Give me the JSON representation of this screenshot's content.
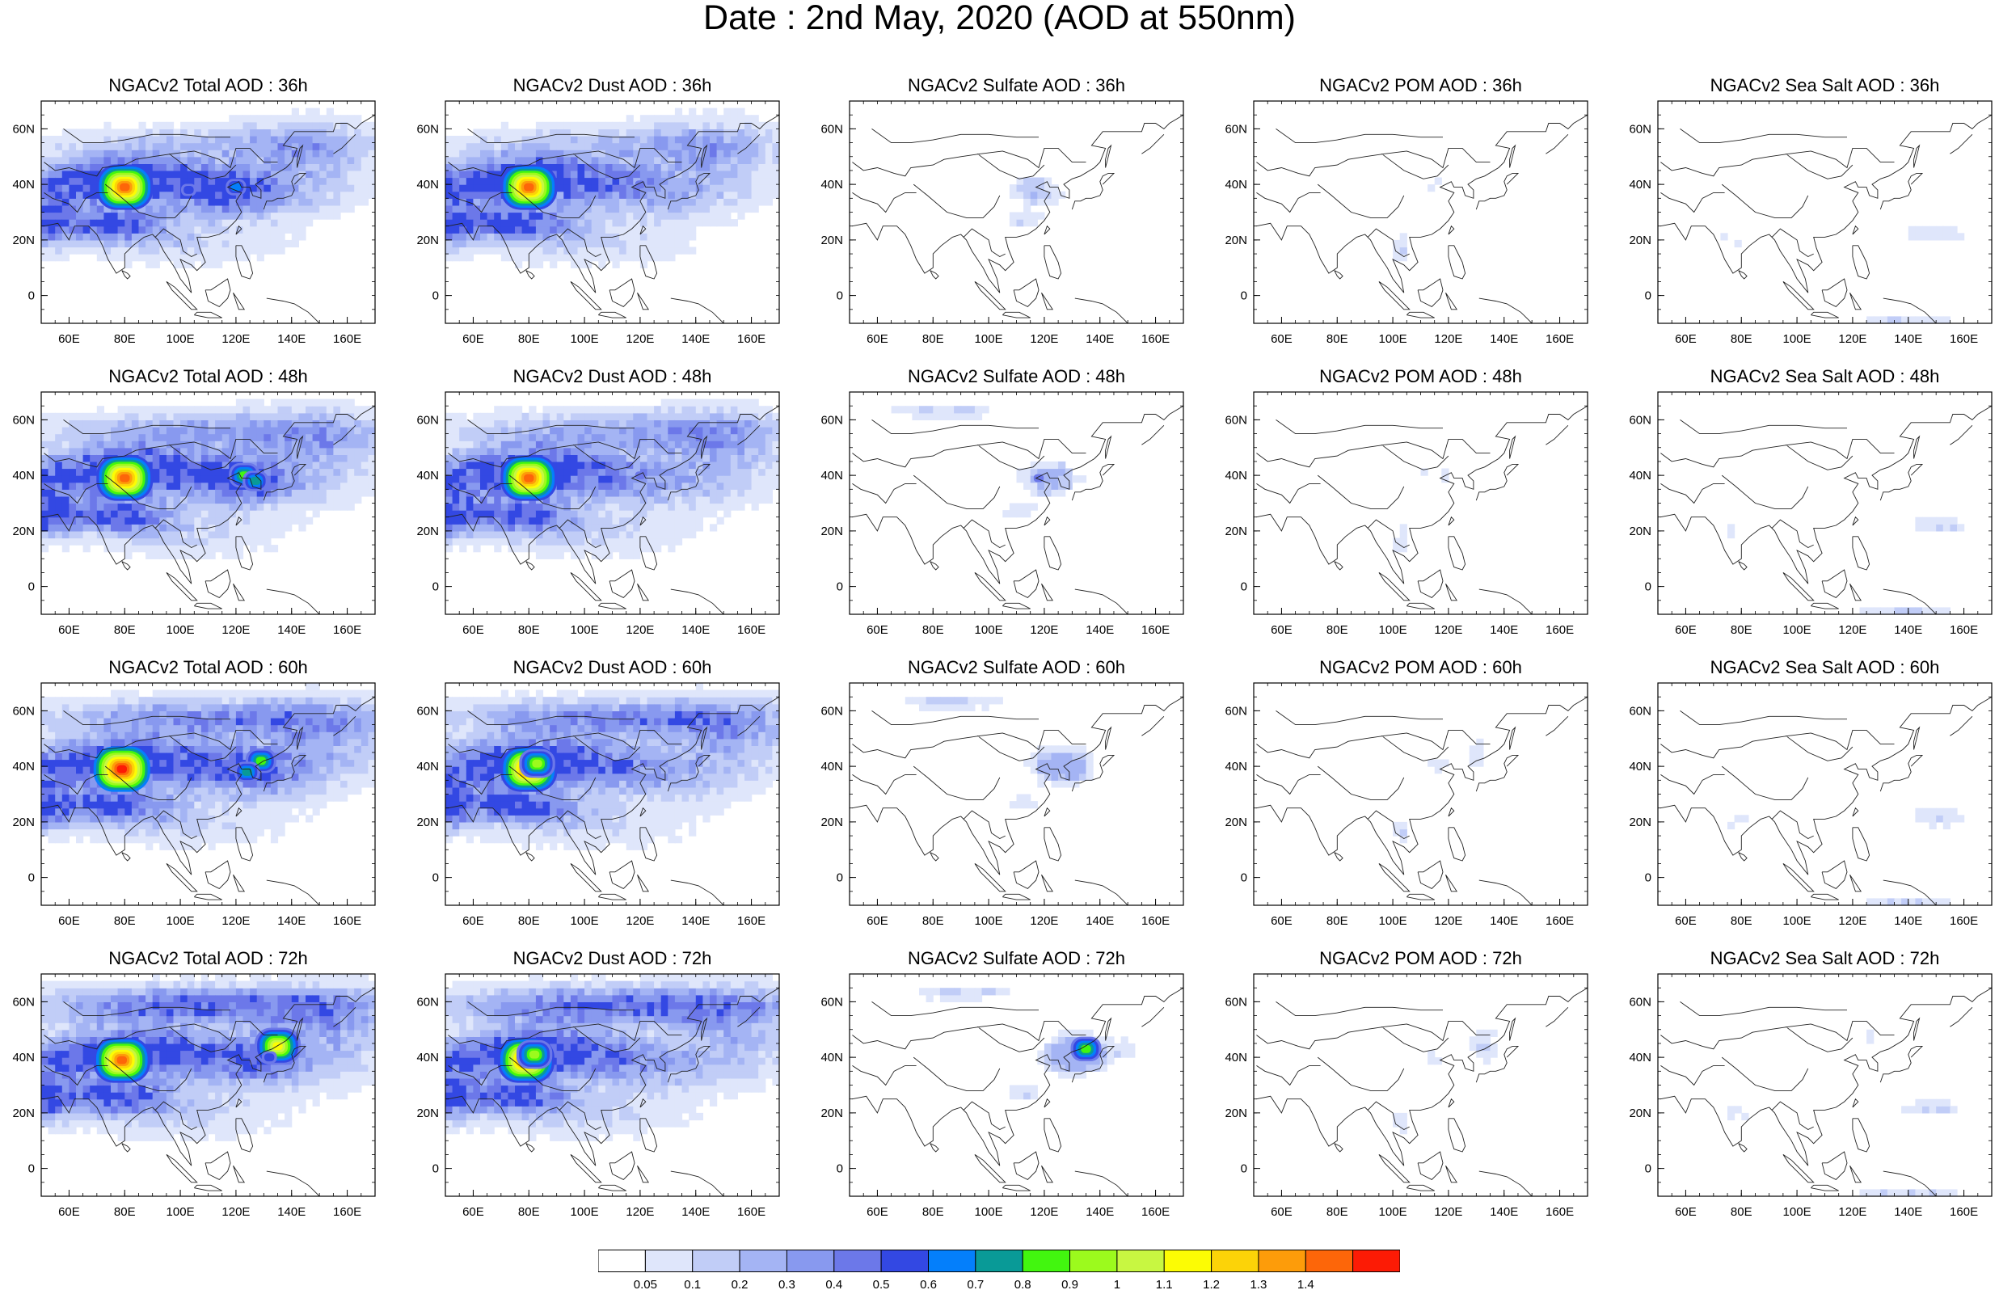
{
  "title": "Date : 2nd May, 2020 (AOD at 550nm)",
  "map": {
    "lon_range": [
      50,
      170
    ],
    "lat_range": [
      -10,
      70
    ],
    "x_ticks": [
      "60E",
      "80E",
      "100E",
      "120E",
      "140E",
      "160E"
    ],
    "x_tick_values": [
      60,
      80,
      100,
      120,
      140,
      160
    ],
    "y_ticks": [
      "60N",
      "40N",
      "20N",
      "0"
    ],
    "y_tick_values": [
      60,
      40,
      20,
      0
    ]
  },
  "panels": [
    {
      "id": "total-36",
      "title": "NGACv2 Total AOD : 36h",
      "species": "total",
      "forecast_hour": 36
    },
    {
      "id": "dust-36",
      "title": "NGACv2 Dust AOD : 36h",
      "species": "dust",
      "forecast_hour": 36
    },
    {
      "id": "sulfate-36",
      "title": "NGACv2 Sulfate AOD : 36h",
      "species": "sulfate",
      "forecast_hour": 36
    },
    {
      "id": "pom-36",
      "title": "NGACv2 POM AOD : 36h",
      "species": "pom",
      "forecast_hour": 36
    },
    {
      "id": "seasalt-36",
      "title": "NGACv2 Sea Salt AOD : 36h",
      "species": "seasalt",
      "forecast_hour": 36
    },
    {
      "id": "total-48",
      "title": "NGACv2 Total AOD : 48h",
      "species": "total",
      "forecast_hour": 48
    },
    {
      "id": "dust-48",
      "title": "NGACv2 Dust AOD : 48h",
      "species": "dust",
      "forecast_hour": 48
    },
    {
      "id": "sulfate-48",
      "title": "NGACv2 Sulfate AOD : 48h",
      "species": "sulfate",
      "forecast_hour": 48
    },
    {
      "id": "pom-48",
      "title": "NGACv2 POM AOD : 48h",
      "species": "pom",
      "forecast_hour": 48
    },
    {
      "id": "seasalt-48",
      "title": "NGACv2 Sea Salt AOD : 48h",
      "species": "seasalt",
      "forecast_hour": 48
    },
    {
      "id": "total-60",
      "title": "NGACv2 Total AOD : 60h",
      "species": "total",
      "forecast_hour": 60
    },
    {
      "id": "dust-60",
      "title": "NGACv2 Dust AOD : 60h",
      "species": "dust",
      "forecast_hour": 60
    },
    {
      "id": "sulfate-60",
      "title": "NGACv2 Sulfate AOD : 60h",
      "species": "sulfate",
      "forecast_hour": 60
    },
    {
      "id": "pom-60",
      "title": "NGACv2 POM AOD : 60h",
      "species": "pom",
      "forecast_hour": 60
    },
    {
      "id": "seasalt-60",
      "title": "NGACv2 Sea Salt AOD : 60h",
      "species": "seasalt",
      "forecast_hour": 60
    },
    {
      "id": "total-72",
      "title": "NGACv2 Total AOD : 72h",
      "species": "total",
      "forecast_hour": 72
    },
    {
      "id": "dust-72",
      "title": "NGACv2 Dust AOD : 72h",
      "species": "dust",
      "forecast_hour": 72
    },
    {
      "id": "sulfate-72",
      "title": "NGACv2 Sulfate AOD : 72h",
      "species": "sulfate",
      "forecast_hour": 72
    },
    {
      "id": "pom-72",
      "title": "NGACv2 POM AOD : 72h",
      "species": "pom",
      "forecast_hour": 72
    },
    {
      "id": "seasalt-72",
      "title": "NGACv2 Sea Salt  AOD : 72h",
      "species": "seasalt",
      "forecast_hour": 72
    }
  ],
  "colorbar": {
    "labels": [
      "0.05",
      "0.1",
      "0.2",
      "0.3",
      "0.4",
      "0.5",
      "0.6",
      "0.7",
      "0.8",
      "0.9",
      "1",
      "1.1",
      "1.2",
      "1.3",
      "1.4"
    ],
    "colors": [
      "#ffffff",
      "#dfe6fb",
      "#c1cdf7",
      "#a4b4f4",
      "#8899ef",
      "#6c78e9",
      "#3348e3",
      "#047ffb",
      "#099a97",
      "#42f60f",
      "#9cfa1d",
      "#c8f741",
      "#fcfc04",
      "#fcd308",
      "#fd9c0a",
      "#fd6609",
      "#fc1b05"
    ]
  },
  "plumes": [
    {
      "panel": "total-36",
      "lon": 80,
      "lat": 39,
      "level": 15
    },
    {
      "panel": "total-36",
      "lon": 120,
      "lat": 39,
      "level": 7
    },
    {
      "panel": "total-36",
      "lon": 103,
      "lat": 38,
      "level": 6
    },
    {
      "panel": "dust-36",
      "lon": 80,
      "lat": 39,
      "level": 15
    },
    {
      "panel": "dust-36",
      "lon": 120,
      "lat": 40,
      "level": 5
    },
    {
      "panel": "total-48",
      "lon": 80,
      "lat": 39,
      "level": 15
    },
    {
      "panel": "total-48",
      "lon": 123,
      "lat": 40,
      "level": 9
    },
    {
      "panel": "total-48",
      "lon": 127,
      "lat": 38,
      "level": 8
    },
    {
      "panel": "dust-48",
      "lon": 80,
      "lat": 39,
      "level": 15
    },
    {
      "panel": "dust-48",
      "lon": 120,
      "lat": 40,
      "level": 5
    },
    {
      "panel": "sulfate-48",
      "lon": 118,
      "lat": 39,
      "level": 5
    },
    {
      "panel": "total-60",
      "lon": 79,
      "lat": 39,
      "level": 16
    },
    {
      "panel": "total-60",
      "lon": 129,
      "lat": 42,
      "level": 9
    },
    {
      "panel": "total-60",
      "lon": 124,
      "lat": 38,
      "level": 8
    },
    {
      "panel": "dust-60",
      "lon": 80,
      "lat": 39,
      "level": 15
    },
    {
      "panel": "dust-60",
      "lon": 83,
      "lat": 41,
      "level": 10
    },
    {
      "panel": "dust-60",
      "lon": 126,
      "lat": 40,
      "level": 4
    },
    {
      "panel": "sulfate-60",
      "lon": 128,
      "lat": 40,
      "level": 4
    },
    {
      "panel": "total-72",
      "lon": 79,
      "lat": 39,
      "level": 15
    },
    {
      "panel": "total-72",
      "lon": 135,
      "lat": 44,
      "level": 12
    },
    {
      "panel": "total-72",
      "lon": 132,
      "lat": 40,
      "level": 6
    },
    {
      "panel": "dust-72",
      "lon": 79,
      "lat": 39,
      "level": 15
    },
    {
      "panel": "dust-72",
      "lon": 82,
      "lat": 41,
      "level": 10
    },
    {
      "panel": "sulfate-72",
      "lon": 135,
      "lat": 43,
      "level": 9
    }
  ]
}
